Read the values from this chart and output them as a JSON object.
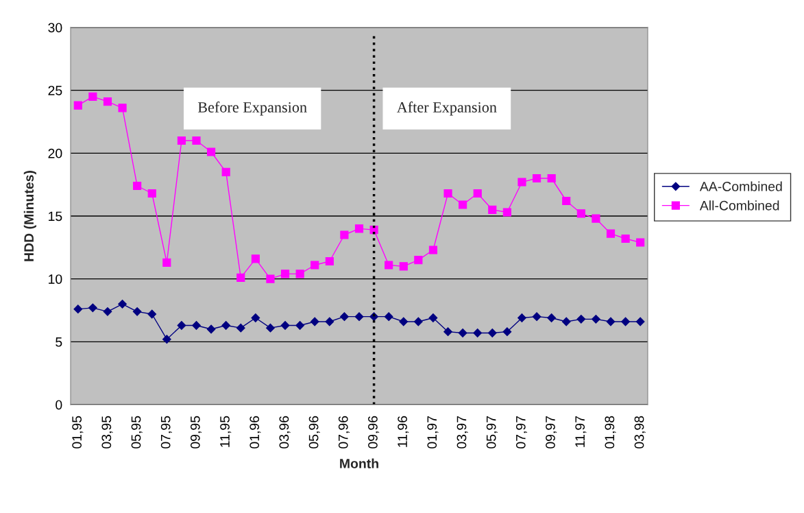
{
  "chart_data": {
    "type": "line",
    "xlabel": "Month",
    "ylabel": "HDD (Minutes)",
    "categories": [
      "01,95",
      null,
      "03,95",
      null,
      "05,95",
      null,
      "07,95",
      null,
      "09,95",
      null,
      "11,95",
      null,
      "01,96",
      null,
      "03,96",
      null,
      "05,96",
      null,
      "07,96",
      null,
      "09,96",
      null,
      "11,96",
      null,
      "01,97",
      null,
      "03,97",
      null,
      "05,97",
      null,
      "07,97",
      null,
      "09,97",
      null,
      "11,97",
      null,
      "01,98",
      null,
      "03,98"
    ],
    "series": [
      {
        "name": "AA-Combined",
        "color": "#000080",
        "marker": "diamond",
        "values": [
          7.6,
          7.7,
          7.4,
          8.0,
          7.4,
          7.2,
          5.2,
          6.3,
          6.3,
          6.0,
          6.3,
          6.1,
          6.9,
          6.1,
          6.3,
          6.3,
          6.6,
          6.6,
          7.0,
          7.0,
          7.0,
          7.0,
          6.6,
          6.6,
          6.9,
          5.8,
          5.7,
          5.7,
          5.7,
          5.8,
          6.9,
          7.0,
          6.9,
          6.6,
          6.8,
          6.8,
          6.6,
          6.6,
          6.6
        ]
      },
      {
        "name": "All-Combined",
        "color": "#ff00ff",
        "marker": "square",
        "values": [
          23.8,
          24.5,
          24.1,
          23.6,
          17.4,
          16.8,
          11.3,
          21.0,
          21.0,
          20.1,
          18.5,
          10.1,
          11.6,
          10.0,
          10.4,
          10.4,
          11.1,
          11.4,
          13.5,
          14.0,
          13.9,
          11.1,
          11.0,
          11.5,
          12.3,
          16.8,
          15.9,
          16.8,
          15.5,
          15.3,
          17.7,
          18.0,
          18.0,
          16.2,
          15.2,
          14.8,
          13.6,
          13.2,
          12.9
        ]
      }
    ],
    "ylim": [
      0,
      30
    ],
    "yticks": [
      0,
      5,
      10,
      15,
      20,
      25,
      30
    ],
    "ref_lines": [
      {
        "axis": "x",
        "value": "09,96",
        "color": "#000000",
        "line_style": "dotted"
      }
    ],
    "annotations": [
      "Before Expansion",
      "After Expansion"
    ],
    "grid": "y",
    "legend": "right"
  }
}
